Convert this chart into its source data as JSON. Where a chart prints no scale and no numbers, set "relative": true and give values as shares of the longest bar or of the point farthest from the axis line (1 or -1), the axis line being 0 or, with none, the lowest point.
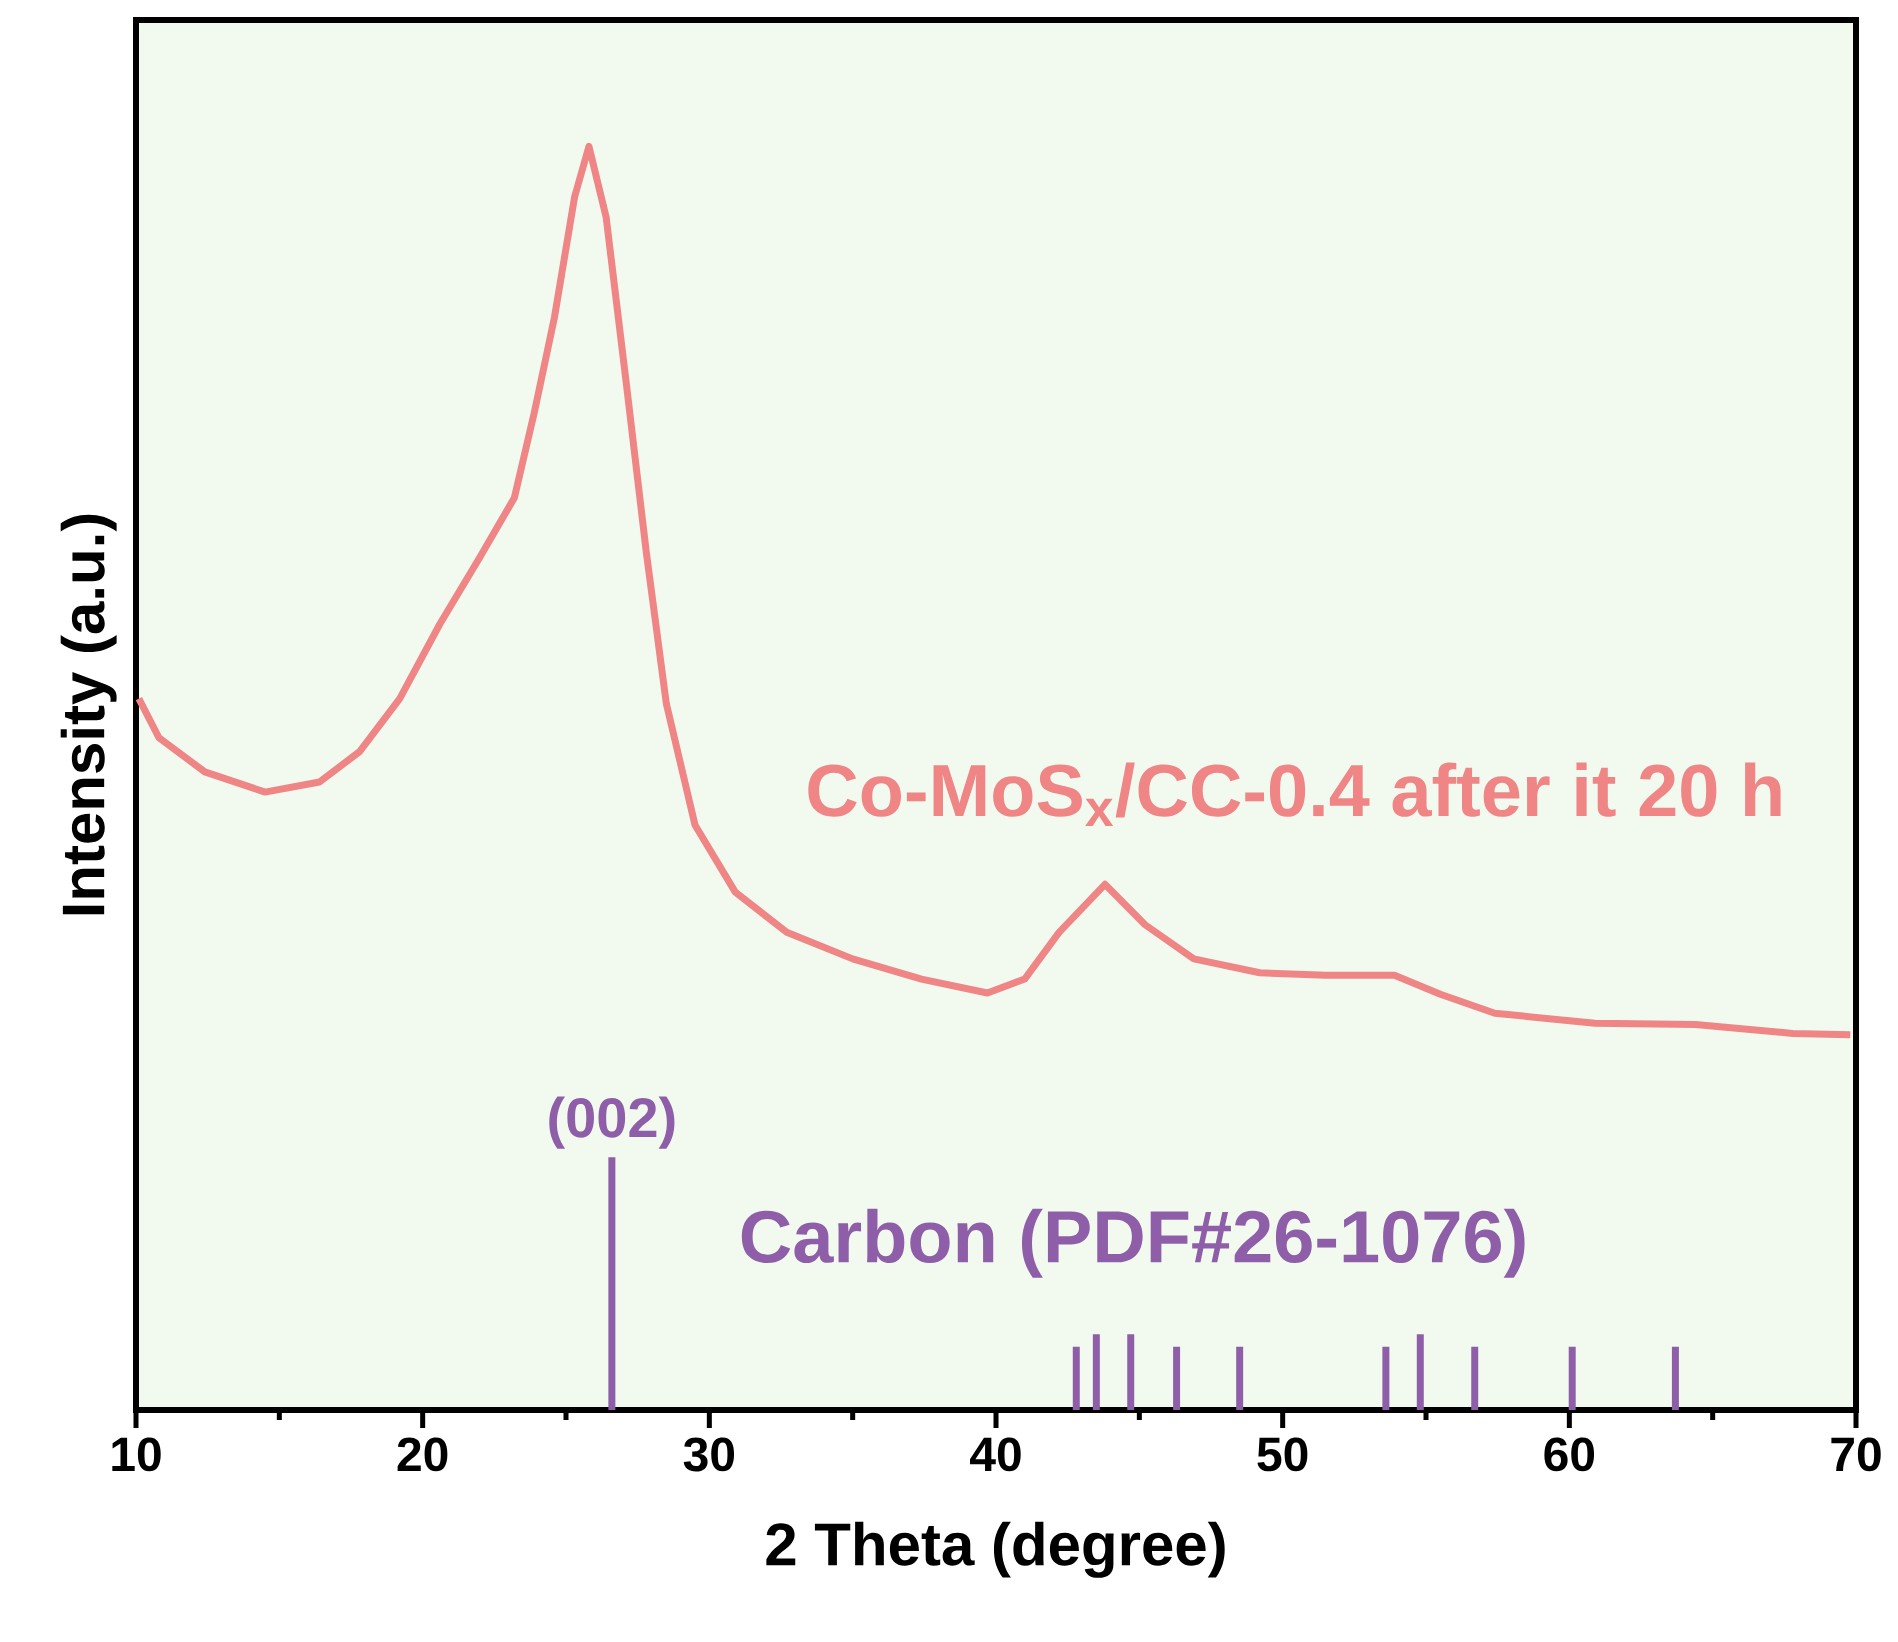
{
  "chart_data": {
    "type": "line",
    "relative": true,
    "xlabel": "2 Theta (degree)",
    "ylabel": "Intensity (a.u.)",
    "xlim": [
      10,
      70
    ],
    "xticks": [
      10,
      20,
      30,
      40,
      50,
      60,
      70
    ],
    "legend": false,
    "marker": "none",
    "annotations": [
      {
        "text": "(002)",
        "x": 26.6,
        "y": 0.2
      }
    ],
    "series": [
      {
        "name": "Co-MoS$_{x}$/CC-0.4 after it 20 h",
        "color": "#ef8585",
        "x": [
          10.1,
          10.8,
          12.4,
          14.5,
          16.4,
          17.8,
          19.2,
          20.6,
          22.0,
          23.2,
          23.9,
          24.6,
          25.3,
          25.8,
          26.4,
          27.1,
          27.8,
          28.5,
          29.5,
          30.9,
          32.7,
          35.0,
          37.4,
          39.7,
          41.0,
          42.2,
          43.8,
          45.2,
          46.9,
          49.2,
          51.5,
          53.9,
          55.5,
          57.4,
          60.9,
          64.4,
          67.8,
          69.8
        ],
        "values": [
          0.563,
          0.532,
          0.505,
          0.489,
          0.497,
          0.521,
          0.563,
          0.622,
          0.675,
          0.722,
          0.79,
          0.865,
          0.96,
          1.0,
          0.944,
          0.813,
          0.679,
          0.559,
          0.463,
          0.41,
          0.378,
          0.357,
          0.341,
          0.33,
          0.341,
          0.378,
          0.416,
          0.384,
          0.357,
          0.346,
          0.344,
          0.344,
          0.329,
          0.314,
          0.306,
          0.305,
          0.298,
          0.297
        ]
      },
      {
        "name": "Carbon (PDF#26-1076)",
        "type": "bar",
        "color": "#8e5ea8",
        "x": [
          26.6,
          42.8,
          43.5,
          44.7,
          46.3,
          48.5,
          53.6,
          54.8,
          56.7,
          60.1,
          63.7
        ],
        "values": [
          0.2,
          0.05,
          0.06,
          0.06,
          0.05,
          0.05,
          0.05,
          0.06,
          0.05,
          0.05,
          0.05
        ]
      }
    ]
  }
}
